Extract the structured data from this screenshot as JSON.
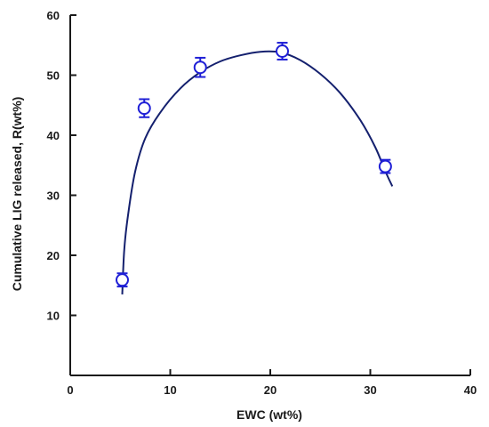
{
  "chart_data": {
    "type": "scatter",
    "title": "",
    "xlabel": "EWC (wt%)",
    "ylabel": "Cumulative LIG released, R(wt%)",
    "xlim": [
      0,
      40
    ],
    "ylim": [
      0,
      60
    ],
    "x_ticks": [
      "0",
      "10",
      "20",
      "30",
      "40"
    ],
    "y_ticks": [
      "10",
      "20",
      "30",
      "40",
      "50",
      "60"
    ],
    "grid": false,
    "series": [
      {
        "points": [
          {
            "x": 5.2,
            "y": 15.9,
            "err": 1.1
          },
          {
            "x": 7.4,
            "y": 44.5,
            "err": 1.5
          },
          {
            "x": 13.0,
            "y": 51.3,
            "err": 1.6
          },
          {
            "x": 21.2,
            "y": 54.0,
            "err": 1.4
          },
          {
            "x": 31.5,
            "y": 34.8,
            "err": 1.1
          }
        ]
      }
    ],
    "fit_curve": [
      [
        5.2,
        13.5
      ],
      [
        5.4,
        21.0
      ],
      [
        5.8,
        27.0
      ],
      [
        6.5,
        34.0
      ],
      [
        7.5,
        39.5
      ],
      [
        9.0,
        43.8
      ],
      [
        11.0,
        47.8
      ],
      [
        13.0,
        50.5
      ],
      [
        15.0,
        52.3
      ],
      [
        17.0,
        53.3
      ],
      [
        19.0,
        53.9
      ],
      [
        21.0,
        53.8
      ],
      [
        23.0,
        52.5
      ],
      [
        25.0,
        50.2
      ],
      [
        27.0,
        47.0
      ],
      [
        29.0,
        42.5
      ],
      [
        30.5,
        38.0
      ],
      [
        31.5,
        34.0
      ],
      [
        32.2,
        31.5
      ]
    ],
    "colors": {
      "series": "#1f1fd6",
      "curve": "#14206e",
      "axis": "#1a1a1a"
    }
  }
}
